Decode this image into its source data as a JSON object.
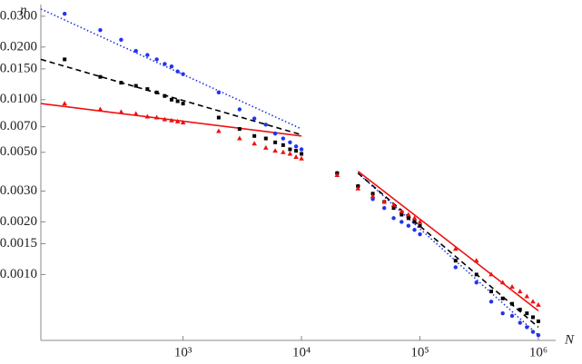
{
  "chart_data": {
    "type": "scatter",
    "x_label": "N",
    "y_label": "η",
    "xscale": "log",
    "yscale": "log",
    "xlim": [
      63,
      1400000
    ],
    "ylim": [
      0.00042,
      0.035
    ],
    "xticks": [
      {
        "value": 1000,
        "label": "10³"
      },
      {
        "value": 10000,
        "label": "10⁴"
      },
      {
        "value": 100000,
        "label": "10⁵"
      },
      {
        "value": 1000000,
        "label": "10⁶"
      }
    ],
    "yticks": [
      {
        "value": 0.03,
        "label": "0.0300"
      },
      {
        "value": 0.02,
        "label": "0.0200"
      },
      {
        "value": 0.015,
        "label": "0.0150"
      },
      {
        "value": 0.01,
        "label": "0.0100"
      },
      {
        "value": 0.007,
        "label": "0.0070"
      },
      {
        "value": 0.005,
        "label": "0.0050"
      },
      {
        "value": 0.003,
        "label": "0.0030"
      },
      {
        "value": 0.002,
        "label": "0.0020"
      },
      {
        "value": 0.0015,
        "label": "0.0015"
      },
      {
        "value": 0.001,
        "label": "0.0010"
      }
    ],
    "x": [
      100,
      200,
      300,
      400,
      500,
      600,
      700,
      800,
      900,
      1000,
      2000,
      3000,
      4000,
      5000,
      6000,
      7000,
      8000,
      9000,
      10000,
      20000,
      30000,
      40000,
      50000,
      60000,
      70000,
      80000,
      90000,
      100000,
      200000,
      300000,
      400000,
      500000,
      600000,
      700000,
      800000,
      900000,
      1000000
    ],
    "series": [
      {
        "color": "#2233ee",
        "marker": "circle",
        "values": [
          0.031,
          0.025,
          0.022,
          0.019,
          0.018,
          0.017,
          0.016,
          0.0155,
          0.0145,
          0.014,
          0.011,
          0.0088,
          0.0078,
          0.0072,
          0.0064,
          0.006,
          0.0057,
          0.0054,
          0.0052,
          0.0038,
          0.0032,
          0.0027,
          0.0024,
          0.0021,
          0.002,
          0.0019,
          0.0018,
          0.0017,
          0.0011,
          0.0009,
          0.0007,
          0.0006,
          0.00058,
          0.00053,
          0.0005,
          0.00047,
          0.00045
        ]
      },
      {
        "color": "#000000",
        "marker": "square",
        "values": [
          0.017,
          0.0135,
          0.0125,
          0.012,
          0.0115,
          0.011,
          0.0105,
          0.01,
          0.0098,
          0.0095,
          0.0079,
          0.0068,
          0.0062,
          0.006,
          0.0057,
          0.0055,
          0.0052,
          0.0051,
          0.0049,
          0.0038,
          0.0032,
          0.0029,
          0.0026,
          0.0024,
          0.0022,
          0.0021,
          0.002,
          0.0019,
          0.0012,
          0.001,
          0.0008,
          0.00073,
          0.00068,
          0.00063,
          0.0006,
          0.00057,
          0.00054
        ]
      },
      {
        "color": "#ee1111",
        "marker": "triangle",
        "values": [
          0.0095,
          0.0088,
          0.0085,
          0.0083,
          0.008,
          0.0079,
          0.0077,
          0.0076,
          0.0075,
          0.0074,
          0.0066,
          0.006,
          0.0056,
          0.0053,
          0.0051,
          0.005,
          0.0049,
          0.0047,
          0.0046,
          0.0037,
          0.0031,
          0.0028,
          0.0026,
          0.0025,
          0.0023,
          0.0022,
          0.0021,
          0.002,
          0.0014,
          0.0012,
          0.001,
          0.0009,
          0.00085,
          0.0008,
          0.00075,
          0.0007,
          0.00067
        ]
      }
    ],
    "fit_lines": [
      {
        "color": "#2233ee",
        "style": "dotted",
        "x": [
          63,
          10000,
          null,
          30000,
          1000000
        ],
        "values": [
          0.033,
          0.0068,
          null,
          0.0038,
          0.00045
        ]
      },
      {
        "color": "#000000",
        "style": "dashed",
        "x": [
          63,
          10000,
          null,
          30000,
          1000000
        ],
        "values": [
          0.017,
          0.0063,
          null,
          0.0038,
          0.0005
        ]
      },
      {
        "color": "#ee1111",
        "style": "solid",
        "x": [
          63,
          10000,
          null,
          30000,
          1000000
        ],
        "values": [
          0.0095,
          0.0062,
          null,
          0.0039,
          0.00062
        ]
      }
    ]
  }
}
